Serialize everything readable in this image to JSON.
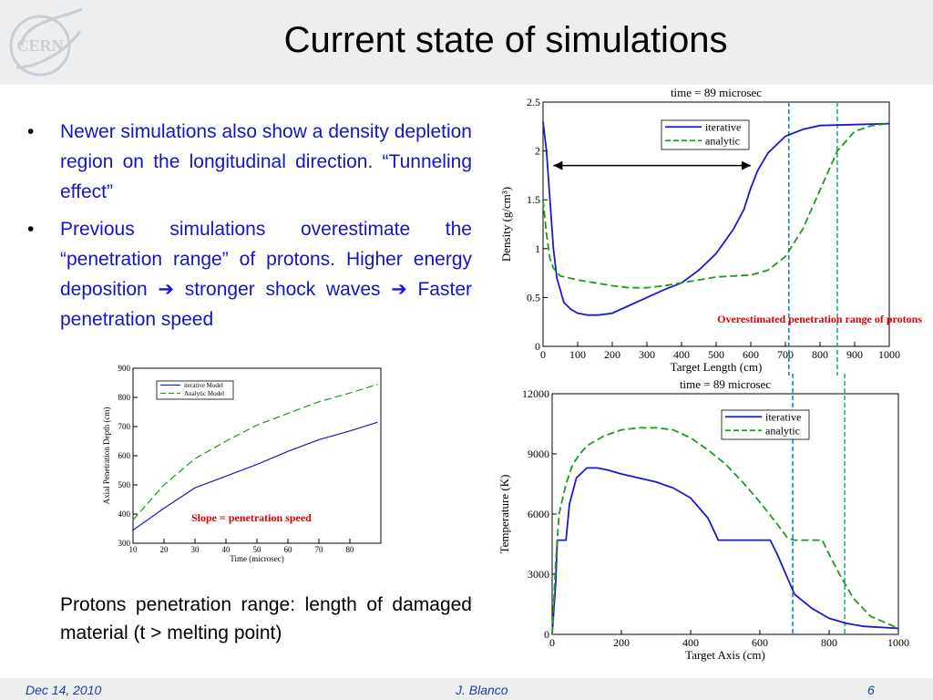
{
  "slide": {
    "title": "Current state of simulations",
    "logo_text": "CERN",
    "bullets": [
      "Newer simulations also show a density depletion region on the longitudinal direction. “Tunneling effect”",
      "Previous simulations overestimate the “penetration range” of protons. Higher energy deposition ➔ stronger shock waves ➔ Faster penetration speed"
    ],
    "caption": "Protons penetration range: length of damaged material (t > melting point)",
    "footer": {
      "date": "Dec 14, 2010",
      "author": "J. Blanco",
      "page": "6"
    },
    "colors": {
      "iterative": "#1a1acc",
      "analytic": "#1f9a1f",
      "annotation": "#e00000",
      "footer_text": "#1f3f9f"
    }
  },
  "chart_data": [
    {
      "type": "line",
      "title": "time = 89 microsec",
      "xlabel": "Target Length (cm)",
      "ylabel": "Density (g/cm³)",
      "xlim": [
        0,
        1000
      ],
      "ylim": [
        0,
        2.5
      ],
      "xticks": [
        0,
        100,
        200,
        300,
        400,
        500,
        600,
        700,
        800,
        900,
        1000
      ],
      "yticks": [
        0,
        0.5,
        1,
        1.5,
        2,
        2.5
      ],
      "legend": "top-center",
      "annotation": "Overestimated penetration range of protons",
      "vlines": [
        {
          "x": 710,
          "series": "iterative"
        },
        {
          "x": 850,
          "series": "analytic"
        }
      ],
      "series": [
        {
          "name": "iterative",
          "x": [
            0,
            10,
            20,
            30,
            40,
            60,
            80,
            100,
            130,
            160,
            200,
            250,
            300,
            350,
            400,
            450,
            500,
            550,
            580,
            600,
            620,
            650,
            700,
            750,
            800,
            900,
            1000
          ],
          "y": [
            2.3,
            2.0,
            1.5,
            1.0,
            0.7,
            0.45,
            0.38,
            0.34,
            0.32,
            0.32,
            0.34,
            0.42,
            0.5,
            0.58,
            0.65,
            0.78,
            0.95,
            1.2,
            1.4,
            1.62,
            1.8,
            1.98,
            2.15,
            2.22,
            2.26,
            2.27,
            2.28
          ]
        },
        {
          "name": "analytic",
          "x": [
            0,
            10,
            20,
            30,
            50,
            100,
            150,
            200,
            250,
            300,
            350,
            400,
            450,
            500,
            550,
            600,
            650,
            700,
            750,
            800,
            850,
            900,
            950,
            1000
          ],
          "y": [
            1.5,
            1.15,
            0.9,
            0.8,
            0.72,
            0.68,
            0.65,
            0.62,
            0.6,
            0.6,
            0.62,
            0.65,
            0.68,
            0.71,
            0.72,
            0.73,
            0.78,
            0.92,
            1.2,
            1.6,
            2.0,
            2.2,
            2.26,
            2.28
          ]
        }
      ]
    },
    {
      "type": "line",
      "title": "time = 89 microsec",
      "xlabel": "Target Axis (cm)",
      "ylabel": "Temperature (K)",
      "xlim": [
        0,
        1000
      ],
      "ylim": [
        0,
        12000
      ],
      "xticks": [
        0,
        200,
        400,
        600,
        800,
        1000
      ],
      "yticks": [
        0,
        3000,
        6000,
        9000,
        12000
      ],
      "legend": "top-right",
      "vlines": [
        {
          "x": 695,
          "series": "iterative"
        },
        {
          "x": 845,
          "series": "analytic"
        }
      ],
      "series": [
        {
          "name": "iterative",
          "x": [
            0,
            10,
            15,
            40,
            50,
            70,
            100,
            130,
            160,
            200,
            250,
            300,
            350,
            400,
            450,
            480,
            500,
            550,
            600,
            630,
            650,
            680,
            700,
            750,
            800,
            850,
            900,
            1000
          ],
          "y": [
            0,
            2500,
            4700,
            4700,
            6500,
            7800,
            8300,
            8300,
            8200,
            8000,
            7800,
            7600,
            7300,
            6800,
            5800,
            4700,
            4700,
            4700,
            4700,
            4700,
            4000,
            2800,
            2000,
            1300,
            800,
            550,
            400,
            300
          ]
        },
        {
          "name": "analytic",
          "x": [
            0,
            10,
            20,
            40,
            60,
            80,
            100,
            150,
            200,
            250,
            300,
            350,
            400,
            450,
            500,
            550,
            600,
            650,
            680,
            700,
            750,
            780,
            800,
            830,
            870,
            920,
            1000
          ],
          "y": [
            0,
            3500,
            6000,
            7500,
            8500,
            9000,
            9400,
            9900,
            10200,
            10300,
            10300,
            10200,
            9800,
            9200,
            8500,
            7600,
            6600,
            5500,
            4800,
            4700,
            4700,
            4700,
            4000,
            3000,
            1800,
            900,
            300
          ]
        }
      ]
    },
    {
      "type": "line",
      "xlabel": "Time (microsec)",
      "ylabel": "Axial Penetration Depth (cm)",
      "xlim": [
        10,
        90
      ],
      "ylim": [
        300,
        900
      ],
      "xticks": [
        10,
        20,
        30,
        40,
        50,
        60,
        70,
        80
      ],
      "yticks": [
        300,
        400,
        500,
        600,
        700,
        800,
        900
      ],
      "legend": "top-left",
      "annotation": "Slope = penetration speed",
      "series": [
        {
          "name": "iterative Model",
          "x": [
            10,
            20,
            30,
            40,
            50,
            60,
            70,
            80,
            89
          ],
          "y": [
            345,
            420,
            490,
            530,
            570,
            615,
            655,
            685,
            715
          ]
        },
        {
          "name": "Analytic Model",
          "x": [
            10,
            20,
            30,
            40,
            50,
            60,
            70,
            80,
            89
          ],
          "y": [
            380,
            500,
            590,
            650,
            705,
            745,
            785,
            815,
            845
          ]
        }
      ]
    }
  ]
}
